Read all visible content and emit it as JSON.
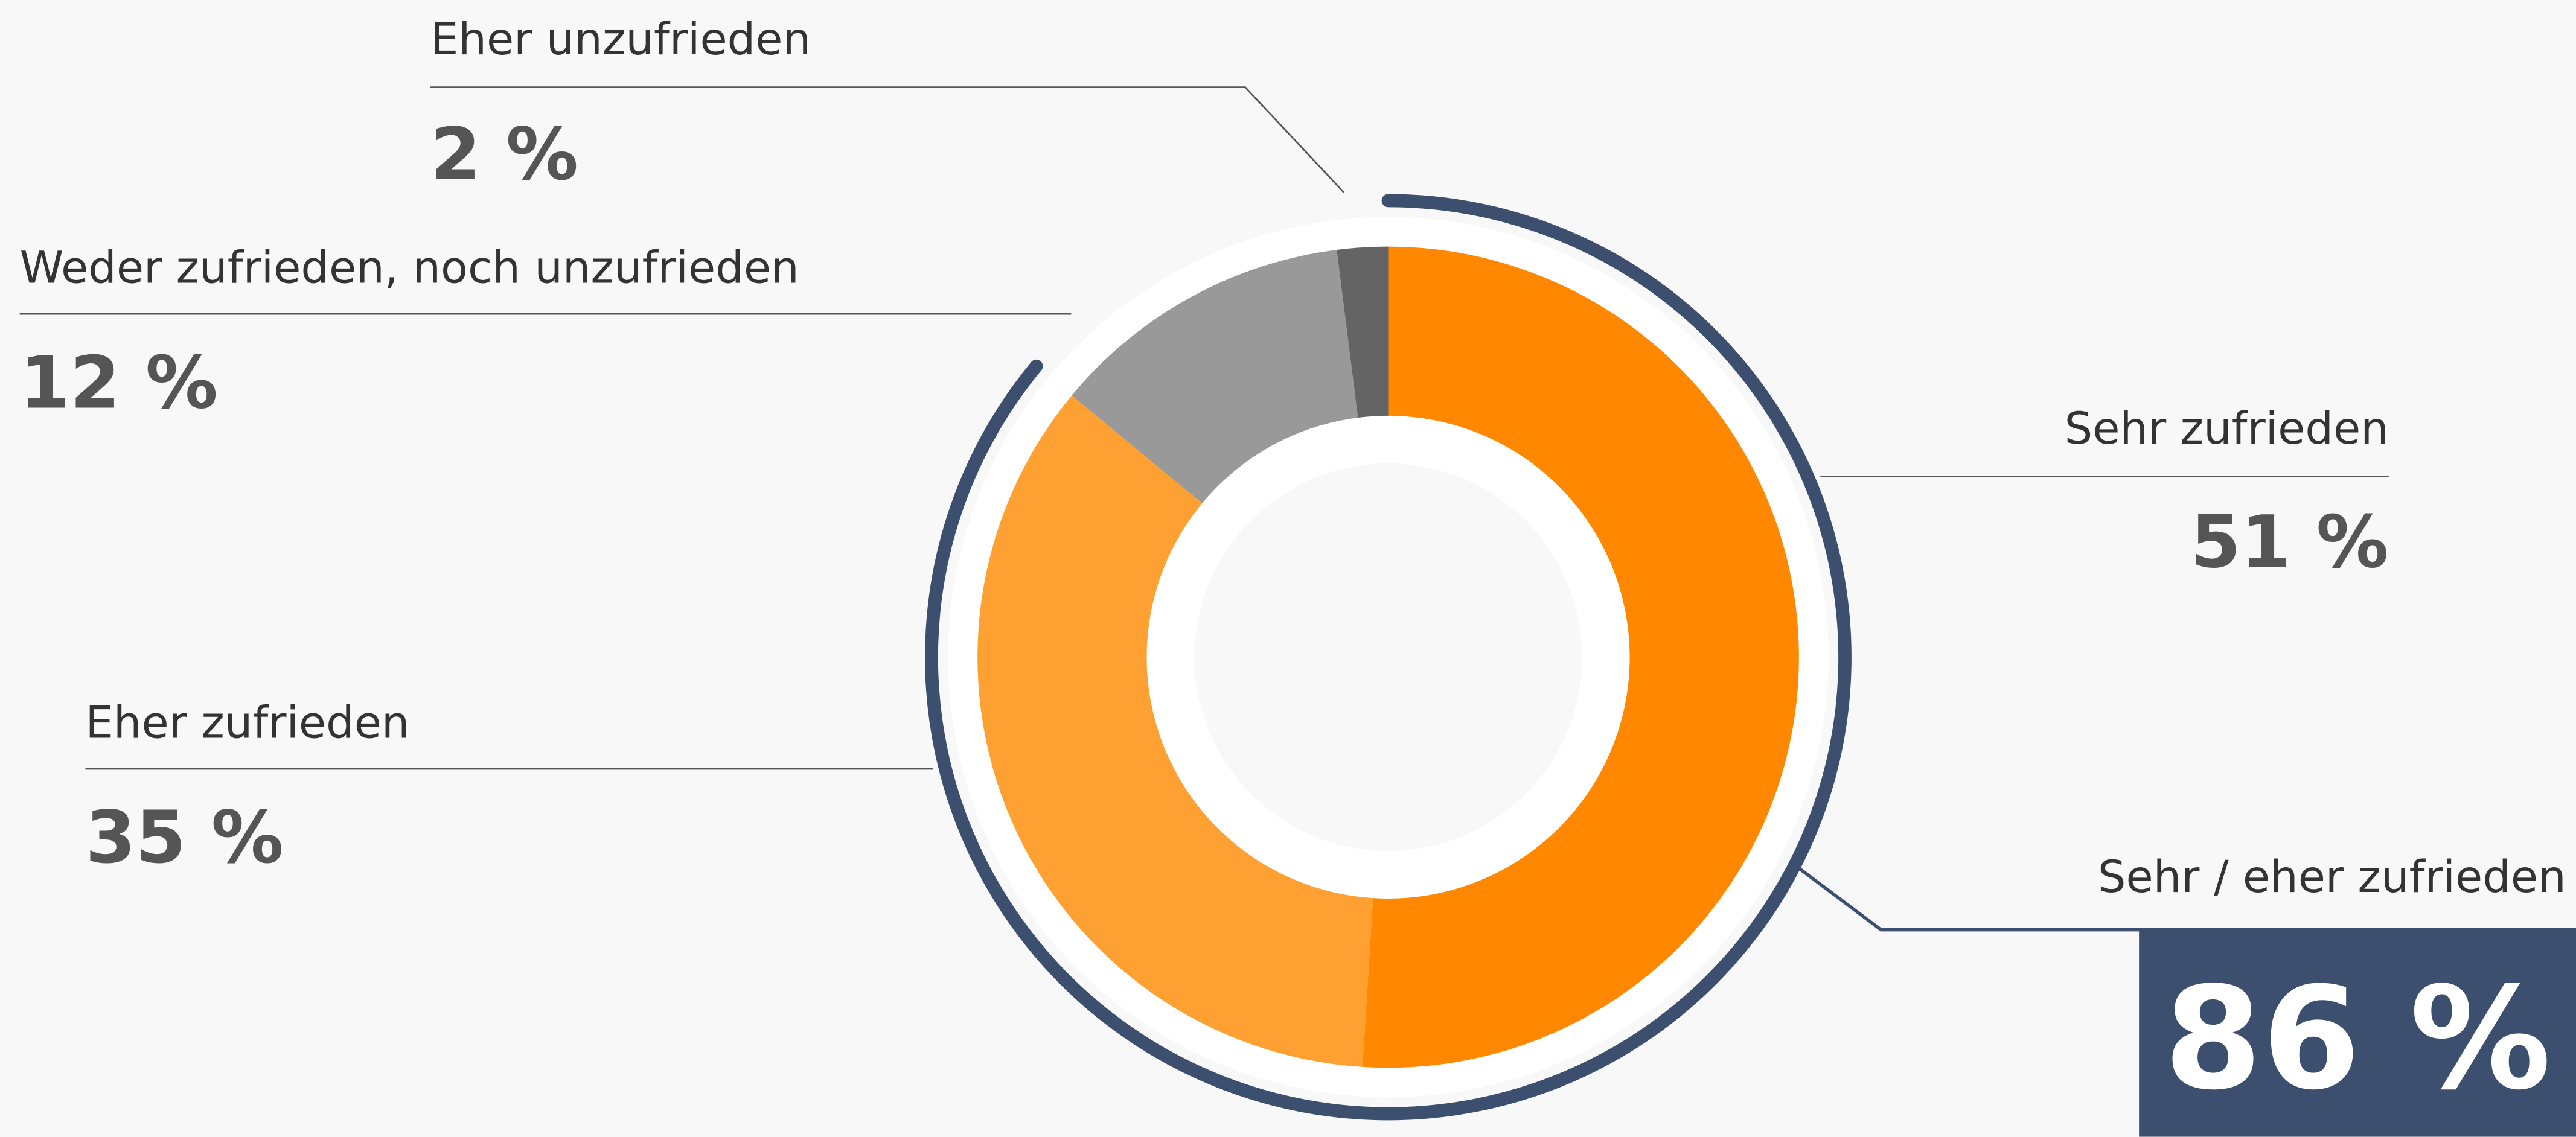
{
  "chart_data": {
    "type": "donut",
    "categories": [
      "Sehr zufrieden",
      "Eher zufrieden",
      "Weder zufrieden, noch unzufrieden",
      "Eher unzufrieden"
    ],
    "values": [
      51,
      35,
      12,
      2
    ],
    "value_labels": [
      "51 %",
      "35 %",
      "12 %",
      "2 %"
    ],
    "colors": [
      "#ff8800",
      "#ffa033",
      "#999999",
      "#646464"
    ],
    "total_label": "Sehr / eher zufrieden",
    "total_value": 86,
    "total_value_label": "86 %",
    "total_color": "#3d4f6e"
  }
}
